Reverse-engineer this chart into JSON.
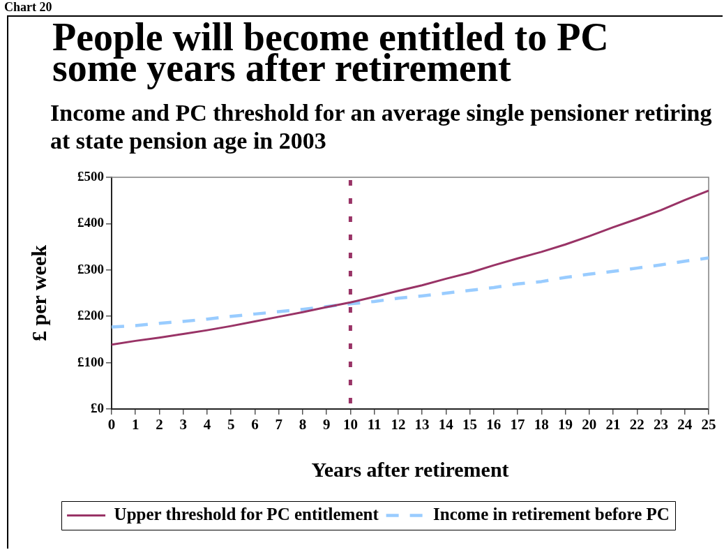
{
  "chart_data": {
    "type": "line",
    "title": "People will become entitled to PC some years after retirement",
    "subtitle": "Income and PC threshold for an average single pensioner retiring at state pension age in 2003",
    "xlabel": "Years after retirement",
    "ylabel": "£ per week",
    "annotations": [
      "Chart 20"
    ],
    "x": [
      0,
      1,
      2,
      3,
      4,
      5,
      6,
      7,
      8,
      9,
      10,
      11,
      12,
      13,
      14,
      15,
      16,
      17,
      18,
      19,
      20,
      21,
      22,
      23,
      24,
      25
    ],
    "series": [
      {
        "name": "Upper threshold for PC entitlement",
        "color": "#993366",
        "values": [
          139,
          147,
          154,
          162,
          170,
          179,
          189,
          199,
          209,
          220,
          230,
          242,
          255,
          267,
          281,
          294,
          310,
          325,
          339,
          355,
          373,
          392,
          410,
          429,
          451,
          471
        ]
      },
      {
        "name": "Income in retirement before PC",
        "color": "#99ccff",
        "line_style": "dashed",
        "values": [
          177,
          180,
          185,
          189,
          194,
          200,
          205,
          210,
          215,
          221,
          227,
          232,
          239,
          244,
          250,
          256,
          262,
          270,
          275,
          284,
          291,
          297,
          304,
          311,
          319,
          326
        ]
      }
    ],
    "xlim": [
      0,
      25
    ],
    "xticks": [
      0,
      1,
      2,
      3,
      4,
      5,
      6,
      7,
      8,
      9,
      10,
      11,
      12,
      13,
      14,
      15,
      16,
      17,
      18,
      19,
      20,
      21,
      22,
      23,
      24,
      25
    ],
    "ylim": [
      0,
      500
    ],
    "yticks": [
      {
        "value": 0,
        "label": "£0"
      },
      {
        "value": 100,
        "label": "£100"
      },
      {
        "value": 200,
        "label": "£200"
      },
      {
        "value": 300,
        "label": "£300"
      },
      {
        "value": 400,
        "label": "£400"
      },
      {
        "value": 500,
        "label": "£500"
      }
    ],
    "ref_lines": [
      {
        "axis": "x",
        "value": 10,
        "color": "#993366",
        "line_style": "dashed"
      }
    ],
    "legend": "bottom",
    "line_style": "solid"
  }
}
